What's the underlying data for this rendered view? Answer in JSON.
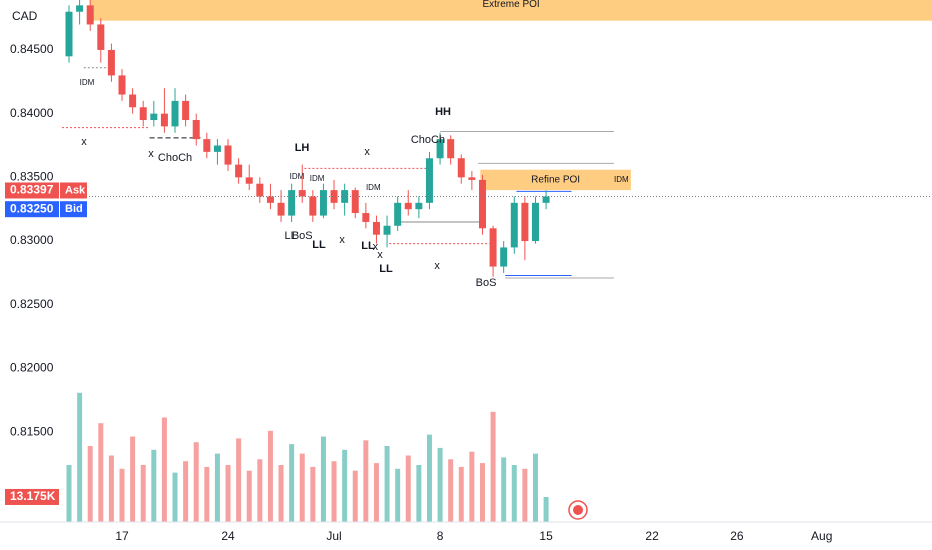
{
  "chart_data": {
    "type": "candlestick",
    "currency": "CAD",
    "xlim": [
      -2.83,
      38.2
    ],
    "xticks": [
      {
        "value": 0,
        "label": "17"
      },
      {
        "value": 5,
        "label": "24"
      },
      {
        "value": 10,
        "label": "Jul"
      },
      {
        "value": 15,
        "label": "8"
      },
      {
        "value": 20,
        "label": "15"
      },
      {
        "value": 25,
        "label": "22"
      },
      {
        "value": 29,
        "label": "26"
      },
      {
        "value": 33,
        "label": "Aug"
      }
    ],
    "ylim": [
      0.80795,
      0.84892
    ],
    "yticks": [
      {
        "value": 0.845,
        "label": "0.84500"
      },
      {
        "value": 0.84,
        "label": "0.84000"
      },
      {
        "value": 0.835,
        "label": "0.83500"
      },
      {
        "value": 0.83,
        "label": "0.83000"
      },
      {
        "value": 0.825,
        "label": "0.82500"
      },
      {
        "value": 0.82,
        "label": "0.82000"
      },
      {
        "value": 0.815,
        "label": "0.81500"
      }
    ],
    "up_color": "#26a69a",
    "down_color": "#ef5350",
    "x": [
      -2.5,
      -2,
      -1.5,
      -1,
      -0.5,
      0,
      0.5,
      1,
      1.5,
      2,
      2.5,
      3,
      3.5,
      4,
      4.5,
      5,
      5.5,
      6,
      6.5,
      7,
      7.5,
      8,
      8.5,
      9,
      9.5,
      10,
      10.5,
      11,
      11.5,
      12,
      12.5,
      13,
      13.5,
      14,
      14.5,
      15,
      15.5,
      16,
      16.5,
      17,
      17.5,
      18,
      18.5,
      19,
      19.5,
      20
    ],
    "open": [
      0.8445,
      0.848,
      0.8485,
      0.847,
      0.845,
      0.843,
      0.8415,
      0.8405,
      0.8395,
      0.84,
      0.839,
      0.841,
      0.8395,
      0.838,
      0.837,
      0.8375,
      0.836,
      0.835,
      0.8345,
      0.8335,
      0.833,
      0.832,
      0.834,
      0.8335,
      0.832,
      0.834,
      0.833,
      0.834,
      0.8322,
      0.8315,
      0.8305,
      0.8312,
      0.833,
      0.8325,
      0.833,
      0.8365,
      0.838,
      0.8365,
      0.835,
      0.8348,
      0.831,
      0.828,
      0.8295,
      0.833,
      0.83,
      0.833
    ],
    "high": [
      0.8485,
      0.849,
      0.849,
      0.8475,
      0.8455,
      0.8435,
      0.842,
      0.841,
      0.841,
      0.842,
      0.842,
      0.8415,
      0.84,
      0.8385,
      0.838,
      0.838,
      0.8365,
      0.836,
      0.835,
      0.8345,
      0.834,
      0.8345,
      0.836,
      0.834,
      0.8345,
      0.8348,
      0.8345,
      0.8342,
      0.833,
      0.832,
      0.832,
      0.8335,
      0.834,
      0.8335,
      0.837,
      0.8385,
      0.8383,
      0.8368,
      0.8355,
      0.8352,
      0.8312,
      0.83,
      0.8335,
      0.8335,
      0.8335,
      0.834
    ],
    "low": [
      0.844,
      0.847,
      0.8465,
      0.844,
      0.8425,
      0.841,
      0.84,
      0.839,
      0.839,
      0.8385,
      0.8385,
      0.839,
      0.8375,
      0.8365,
      0.836,
      0.8355,
      0.8345,
      0.834,
      0.833,
      0.8325,
      0.8315,
      0.8315,
      0.833,
      0.8315,
      0.8318,
      0.8325,
      0.832,
      0.8318,
      0.831,
      0.8298,
      0.8295,
      0.8308,
      0.832,
      0.8318,
      0.8325,
      0.836,
      0.836,
      0.8345,
      0.834,
      0.8305,
      0.8272,
      0.8275,
      0.829,
      0.8285,
      0.8298,
      0.8325
    ],
    "close": [
      0.848,
      0.8485,
      0.847,
      0.845,
      0.843,
      0.8415,
      0.8405,
      0.8395,
      0.84,
      0.839,
      0.841,
      0.8395,
      0.838,
      0.837,
      0.8375,
      0.836,
      0.835,
      0.8345,
      0.8335,
      0.833,
      0.832,
      0.834,
      0.8335,
      0.832,
      0.834,
      0.833,
      0.834,
      0.8322,
      0.8315,
      0.8305,
      0.8312,
      0.833,
      0.8325,
      0.833,
      0.8365,
      0.838,
      0.8365,
      0.835,
      0.8348,
      0.831,
      0.828,
      0.8295,
      0.833,
      0.83,
      0.833,
      0.8335
    ],
    "volume_lim": [
      0,
      70000
    ],
    "volume": [
      30000,
      68000,
      40000,
      52000,
      35000,
      28000,
      45000,
      30000,
      38000,
      55000,
      26000,
      32000,
      42000,
      29000,
      36000,
      30000,
      44000,
      27000,
      33000,
      48000,
      30000,
      41000,
      36000,
      29000,
      45000,
      32000,
      38000,
      27000,
      43000,
      31000,
      40000,
      28000,
      35000,
      30000,
      46000,
      39000,
      33000,
      29000,
      37000,
      31000,
      58000,
      34000,
      30000,
      28000,
      36000,
      13175
    ],
    "volume_tag": {
      "value": 13175,
      "label": "13.175K"
    },
    "ask": {
      "name": "Ask",
      "value": 0.83397,
      "label": "0.83397"
    },
    "bid": {
      "name": "Bid",
      "value": 0.8325,
      "label": "0.83250"
    },
    "zones": [
      {
        "label": "Extreme POI",
        "x": [
          -1.5,
          38.2
        ],
        "y": [
          0.8473,
          0.84892
        ],
        "color": "#ffc46b"
      },
      {
        "label": "Refine POI",
        "x": [
          16.9,
          24
        ],
        "y": [
          0.834,
          0.8356
        ],
        "color": "#ffc46b"
      }
    ],
    "levels": [
      {
        "x": [
          -2.83,
          1.3
        ],
        "y": 0.8389,
        "color": "#ef5350",
        "style": "dotted"
      },
      {
        "x": [
          1.3,
          3.7
        ],
        "y": 0.8381,
        "color": "#131722",
        "style": "dashed"
      },
      {
        "x": [
          -1.8,
          -0.6
        ],
        "y": 0.8436,
        "color": "#888888",
        "style": "dotted"
      },
      {
        "x": [
          8.6,
          14.5
        ],
        "y": 0.8357,
        "color": "#ef5350",
        "style": "dotted"
      },
      {
        "x": [
          12.6,
          17.4
        ],
        "y": 0.8298,
        "color": "#ef5350",
        "style": "dotted"
      },
      {
        "x": [
          13.1,
          16.9
        ],
        "y": 0.8315,
        "color": "#888888",
        "style": "solid"
      },
      {
        "x": [
          15,
          23.2
        ],
        "y": 0.8386,
        "color": "#aaaaaa",
        "style": "solid"
      },
      {
        "x": [
          16.8,
          23.2
        ],
        "y": 0.8361,
        "color": "#aaaaaa",
        "style": "solid"
      },
      {
        "x": [
          18.6,
          21.2
        ],
        "y": 0.8339,
        "color": "#2962ff",
        "style": "solid"
      },
      {
        "x": [
          18.07,
          21.2
        ],
        "y": 0.8273,
        "color": "#2962ff",
        "style": "solid"
      },
      {
        "x": [
          18.07,
          23.2
        ],
        "y": 0.8271,
        "color": "#aaaaaa",
        "style": "solid"
      }
    ],
    "annotations": [
      {
        "text": "IDM",
        "x": -1.65,
        "y": 0.84241,
        "color": "#787b86"
      },
      {
        "text": "IDM",
        "x": 8.25,
        "y": 0.83503,
        "color": "#787b86"
      },
      {
        "text": "IDM",
        "x": 9.2,
        "y": 0.83487,
        "color": "#787b86"
      },
      {
        "text": "IDM",
        "x": 11.85,
        "y": 0.83417,
        "color": "#787b86"
      },
      {
        "text": "IDM",
        "x": 23.55,
        "y": 0.8348,
        "color": "#787b86"
      },
      {
        "text": "ChoCh",
        "x": 2.5,
        "y": 0.83652,
        "color": "#131722"
      },
      {
        "text": "ChoCh",
        "x": 14.43,
        "y": 0.83793,
        "color": "#131722"
      },
      {
        "text": "HH",
        "x": 15.14,
        "y": 0.84013,
        "color": "#1e53e5"
      },
      {
        "text": "LH",
        "x": 8.49,
        "y": 0.83731,
        "color": "#1e53e5"
      },
      {
        "text": "LL",
        "x": 9.29,
        "y": 0.82969,
        "color": "#1e53e5"
      },
      {
        "text": "LL",
        "x": 11.6,
        "y": 0.82961,
        "color": "#1e53e5"
      },
      {
        "text": "LL",
        "x": 12.45,
        "y": 0.82781,
        "color": "#1e53e5"
      },
      {
        "text": "LL",
        "x": 7.95,
        "y": 0.8304,
        "color": "#131722"
      },
      {
        "text": "BoS",
        "x": 8.5,
        "y": 0.8304,
        "color": "#131722"
      },
      {
        "text": "BoS",
        "x": 17.17,
        "y": 0.82671,
        "color": "#131722"
      },
      {
        "text": "x",
        "x": -1.79,
        "y": 0.83778,
        "color": "#ef5350"
      },
      {
        "text": "x",
        "x": 1.37,
        "y": 0.83684,
        "color": "#ef5350"
      },
      {
        "text": "x",
        "x": 11.56,
        "y": 0.83699,
        "color": "#ef5350"
      },
      {
        "text": "x",
        "x": 10.38,
        "y": 0.83009,
        "color": "#ef5350"
      },
      {
        "text": "x",
        "x": 11.95,
        "y": 0.82953,
        "color": "#ef5350"
      },
      {
        "text": "x",
        "x": 12.17,
        "y": 0.82891,
        "color": "#ef5350"
      },
      {
        "text": "x",
        "x": 14.86,
        "y": 0.82804,
        "color": "#ef5350"
      }
    ]
  }
}
